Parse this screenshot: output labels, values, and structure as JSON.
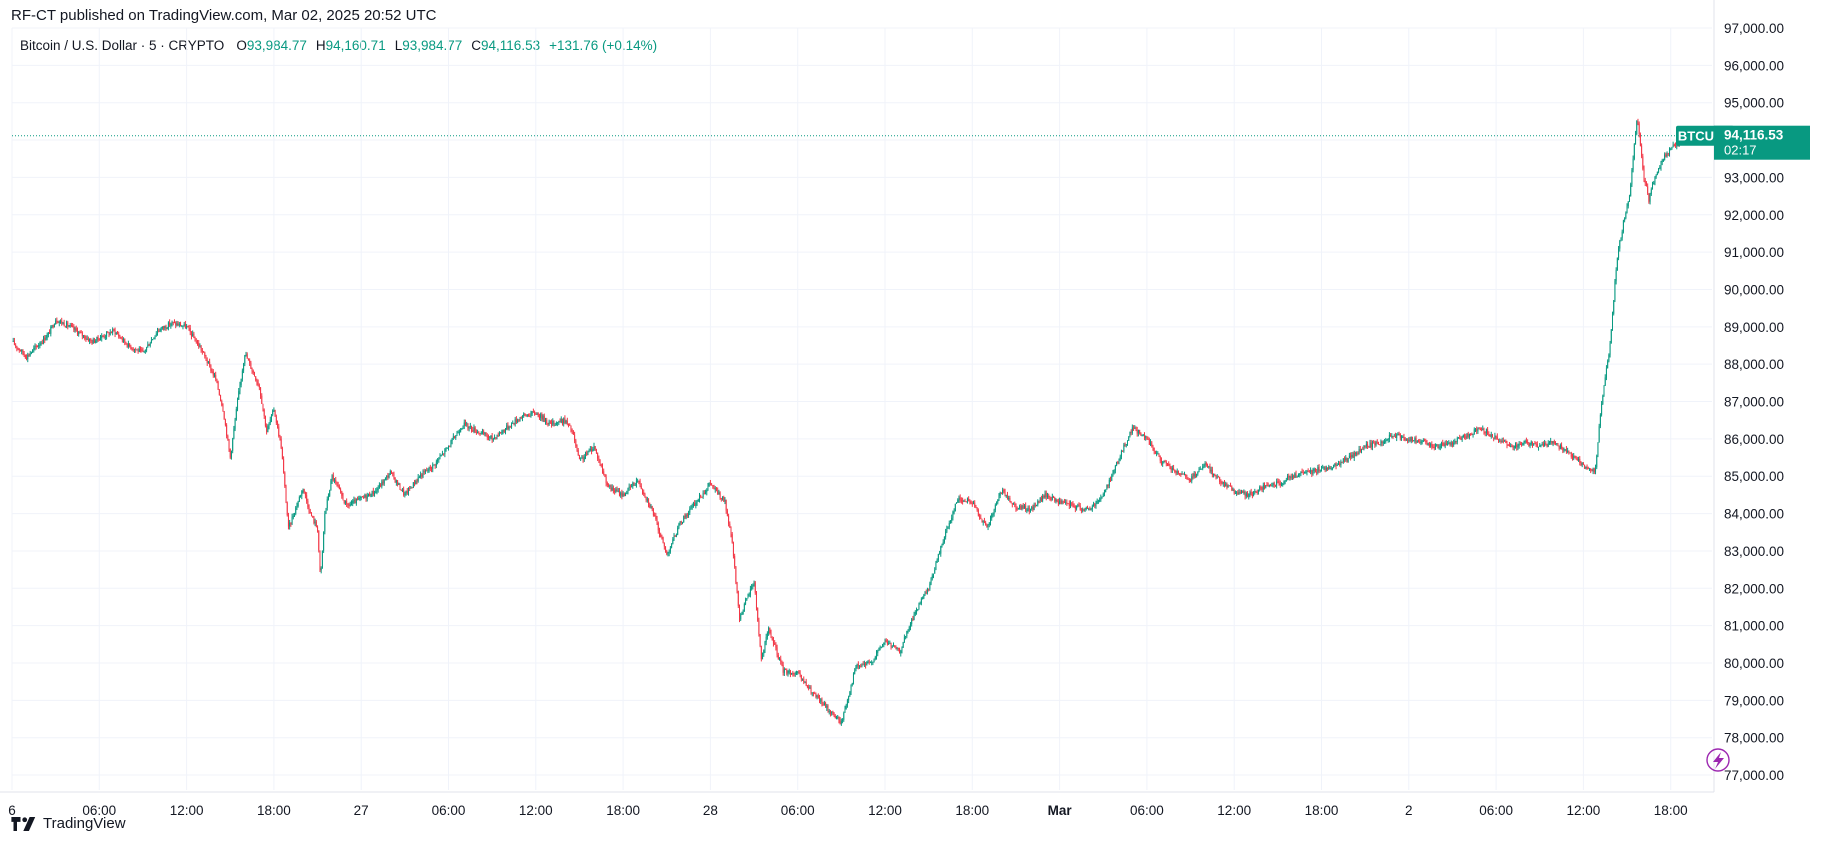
{
  "header": {
    "published": "RF-CT published on TradingView.com, Mar 02, 2025 20:52 UTC"
  },
  "legend": {
    "symbol": "Bitcoin / U.S. Dollar · 5 · CRYPTO",
    "o_label": "O",
    "o_value": "93,984.77",
    "h_label": "H",
    "h_value": "94,160.71",
    "l_label": "L",
    "l_value": "93,984.77",
    "c_label": "C",
    "c_value": "94,116.53",
    "change": "+131.76 (+0.14%)"
  },
  "price_badge": {
    "ticker": "BTCUSD",
    "price": "94,116.53",
    "countdown": "02:17"
  },
  "footer": {
    "brand": "TradingView"
  },
  "colors": {
    "up": "#089981",
    "down": "#f23645",
    "grid": "#f0f3fa",
    "badge": "#089981",
    "text": "#131722",
    "spark": "#9c27b0"
  },
  "icons": {
    "spark": "lightning-icon",
    "logo": "tradingview-logo-icon"
  },
  "chart_data": {
    "type": "candlestick",
    "symbol": "BTCUSD",
    "interval": "5",
    "ylim": [
      76600,
      97000
    ],
    "y_ticks": [
      "97,000.00",
      "96,000.00",
      "95,000.00",
      "94,000.00",
      "93,000.00",
      "92,000.00",
      "91,000.00",
      "90,000.00",
      "89,000.00",
      "88,000.00",
      "87,000.00",
      "86,000.00",
      "85,000.00",
      "84,000.00",
      "83,000.00",
      "82,000.00",
      "81,000.00",
      "80,000.00",
      "79,000.00",
      "78,000.00",
      "77,000.00"
    ],
    "x_ticks": [
      {
        "label": "6",
        "t": 0,
        "bold": false
      },
      {
        "label": "06:00",
        "t": 6,
        "bold": false
      },
      {
        "label": "12:00",
        "t": 12,
        "bold": false
      },
      {
        "label": "18:00",
        "t": 18,
        "bold": false
      },
      {
        "label": "27",
        "t": 24,
        "bold": false
      },
      {
        "label": "06:00",
        "t": 30,
        "bold": false
      },
      {
        "label": "12:00",
        "t": 36,
        "bold": false
      },
      {
        "label": "18:00",
        "t": 42,
        "bold": false
      },
      {
        "label": "28",
        "t": 48,
        "bold": false
      },
      {
        "label": "06:00",
        "t": 54,
        "bold": false
      },
      {
        "label": "12:00",
        "t": 60,
        "bold": false
      },
      {
        "label": "18:00",
        "t": 66,
        "bold": false
      },
      {
        "label": "Mar",
        "t": 72,
        "bold": true
      },
      {
        "label": "06:00",
        "t": 78,
        "bold": false
      },
      {
        "label": "12:00",
        "t": 84,
        "bold": false
      },
      {
        "label": "18:00",
        "t": 90,
        "bold": false
      },
      {
        "label": "2",
        "t": 96,
        "bold": false
      },
      {
        "label": "06:00",
        "t": 102,
        "bold": false
      },
      {
        "label": "12:00",
        "t": 108,
        "bold": false
      },
      {
        "label": "18:00",
        "t": 114,
        "bold": false
      }
    ],
    "last_price": 94116.53,
    "close_path": [
      [
        0,
        88600
      ],
      [
        1,
        88200
      ],
      [
        2.5,
        88800
      ],
      [
        3,
        89200
      ],
      [
        4,
        89000
      ],
      [
        5.5,
        88600
      ],
      [
        7,
        88900
      ],
      [
        8,
        88500
      ],
      [
        9,
        88300
      ],
      [
        10,
        88900
      ],
      [
        11,
        89100
      ],
      [
        12,
        89000
      ],
      [
        13,
        88400
      ],
      [
        14,
        87600
      ],
      [
        14.5,
        86800
      ],
      [
        15,
        85500
      ],
      [
        15.5,
        87000
      ],
      [
        16,
        88300
      ],
      [
        17,
        87400
      ],
      [
        17.5,
        86200
      ],
      [
        18,
        86800
      ],
      [
        18.5,
        85800
      ],
      [
        19,
        83600
      ],
      [
        20,
        84700
      ],
      [
        20.5,
        84000
      ],
      [
        21,
        83600
      ],
      [
        21.2,
        82200
      ],
      [
        21.5,
        84000
      ],
      [
        22,
        85000
      ],
      [
        23,
        84200
      ],
      [
        24,
        84400
      ],
      [
        25,
        84600
      ],
      [
        26,
        85100
      ],
      [
        27,
        84500
      ],
      [
        28,
        85000
      ],
      [
        29,
        85300
      ],
      [
        30,
        85800
      ],
      [
        31,
        86400
      ],
      [
        32,
        86200
      ],
      [
        33,
        86000
      ],
      [
        34,
        86300
      ],
      [
        35,
        86600
      ],
      [
        36,
        86700
      ],
      [
        37,
        86400
      ],
      [
        38,
        86500
      ],
      [
        38.5,
        86200
      ],
      [
        39,
        85400
      ],
      [
        40,
        85800
      ],
      [
        41,
        84700
      ],
      [
        42,
        84500
      ],
      [
        43,
        84900
      ],
      [
        44,
        84100
      ],
      [
        45,
        82900
      ],
      [
        46,
        83800
      ],
      [
        47,
        84300
      ],
      [
        48,
        84800
      ],
      [
        49,
        84300
      ],
      [
        49.5,
        83200
      ],
      [
        50,
        81200
      ],
      [
        51,
        82200
      ],
      [
        51.5,
        80100
      ],
      [
        52,
        80900
      ],
      [
        53,
        79800
      ],
      [
        54,
        79700
      ],
      [
        55,
        79200
      ],
      [
        56,
        78800
      ],
      [
        57,
        78400
      ],
      [
        58,
        79900
      ],
      [
        59,
        80000
      ],
      [
        60,
        80600
      ],
      [
        61,
        80300
      ],
      [
        62,
        81300
      ],
      [
        63,
        82000
      ],
      [
        64,
        83300
      ],
      [
        65,
        84400
      ],
      [
        66,
        84300
      ],
      [
        67,
        83600
      ],
      [
        68,
        84600
      ],
      [
        69,
        84200
      ],
      [
        70,
        84100
      ],
      [
        71,
        84500
      ],
      [
        72,
        84300
      ],
      [
        73,
        84200
      ],
      [
        74,
        84100
      ],
      [
        75,
        84500
      ],
      [
        76,
        85400
      ],
      [
        77,
        86300
      ],
      [
        78,
        86000
      ],
      [
        79,
        85400
      ],
      [
        80,
        85100
      ],
      [
        81,
        84900
      ],
      [
        82,
        85300
      ],
      [
        83,
        84900
      ],
      [
        84,
        84600
      ],
      [
        85,
        84500
      ],
      [
        86,
        84700
      ],
      [
        87,
        84800
      ],
      [
        88,
        85000
      ],
      [
        89,
        85100
      ],
      [
        90,
        85200
      ],
      [
        91,
        85300
      ],
      [
        92,
        85500
      ],
      [
        93,
        85800
      ],
      [
        94,
        85900
      ],
      [
        95,
        86100
      ],
      [
        96,
        86000
      ],
      [
        97,
        85900
      ],
      [
        98,
        85800
      ],
      [
        99,
        85900
      ],
      [
        100,
        86100
      ],
      [
        101,
        86300
      ],
      [
        102,
        86000
      ],
      [
        103,
        85800
      ],
      [
        104,
        85900
      ],
      [
        105,
        85800
      ],
      [
        106,
        85900
      ],
      [
        107,
        85600
      ],
      [
        108,
        85300
      ],
      [
        108.8,
        85100
      ],
      [
        109.2,
        86800
      ],
      [
        109.8,
        88400
      ],
      [
        110.3,
        90800
      ],
      [
        110.8,
        91900
      ],
      [
        111.2,
        92600
      ],
      [
        111.7,
        94700
      ],
      [
        112.1,
        93100
      ],
      [
        112.5,
        92400
      ],
      [
        113,
        93100
      ],
      [
        113.5,
        93500
      ],
      [
        114,
        93800
      ],
      [
        114.5,
        93900
      ],
      [
        115,
        94116.53
      ]
    ]
  }
}
